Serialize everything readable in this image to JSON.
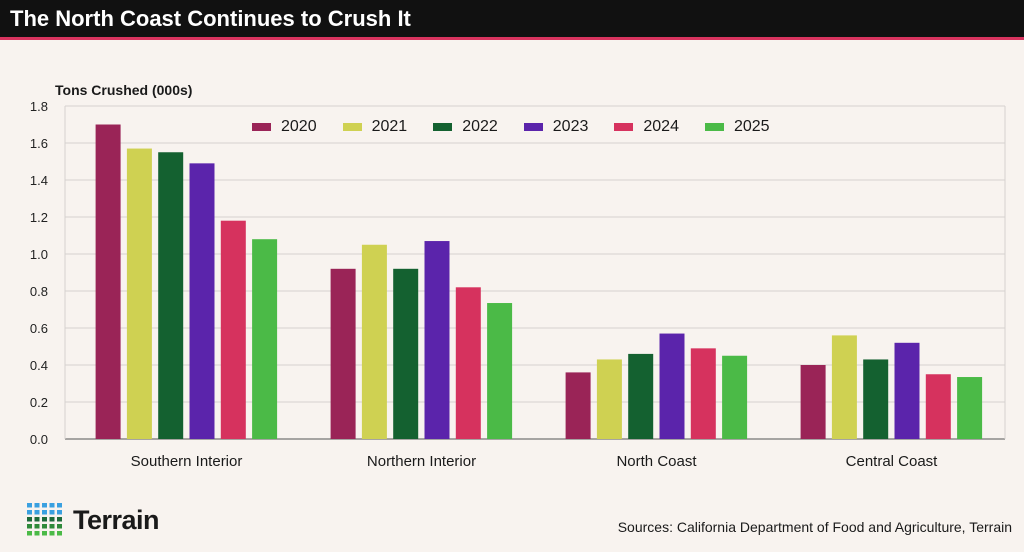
{
  "title": "The North Coast Continues to Crush It",
  "source": "Sources: California Department of Food and Agriculture, Terrain",
  "logo": "Terrain",
  "chart_data": {
    "type": "bar",
    "ylabel": "Tons Crushed (000s)",
    "ylim": [
      0,
      1.8
    ],
    "yticks": [
      "0.0",
      "0.2",
      "0.4",
      "0.6",
      "0.8",
      "1.0",
      "1.2",
      "1.4",
      "1.6",
      "1.8"
    ],
    "grid": true,
    "legend": "top-center",
    "categories": [
      "Southern Interior",
      "Northern Interior",
      "North Coast",
      "Central Coast"
    ],
    "series": [
      {
        "name": "2020",
        "color": "#9a2457",
        "values": [
          1.7,
          0.92,
          0.36,
          0.4
        ]
      },
      {
        "name": "2021",
        "color": "#cfd152",
        "values": [
          1.57,
          1.05,
          0.43,
          0.56
        ]
      },
      {
        "name": "2022",
        "color": "#146130",
        "values": [
          1.55,
          0.92,
          0.46,
          0.43
        ]
      },
      {
        "name": "2023",
        "color": "#5b24ab",
        "values": [
          1.49,
          1.07,
          0.57,
          0.52
        ]
      },
      {
        "name": "2024",
        "color": "#d6325e",
        "values": [
          1.18,
          0.82,
          0.49,
          0.35
        ]
      },
      {
        "name": "2025",
        "color": "#4bba47",
        "values": [
          1.08,
          0.735,
          0.45,
          0.335
        ]
      }
    ]
  }
}
